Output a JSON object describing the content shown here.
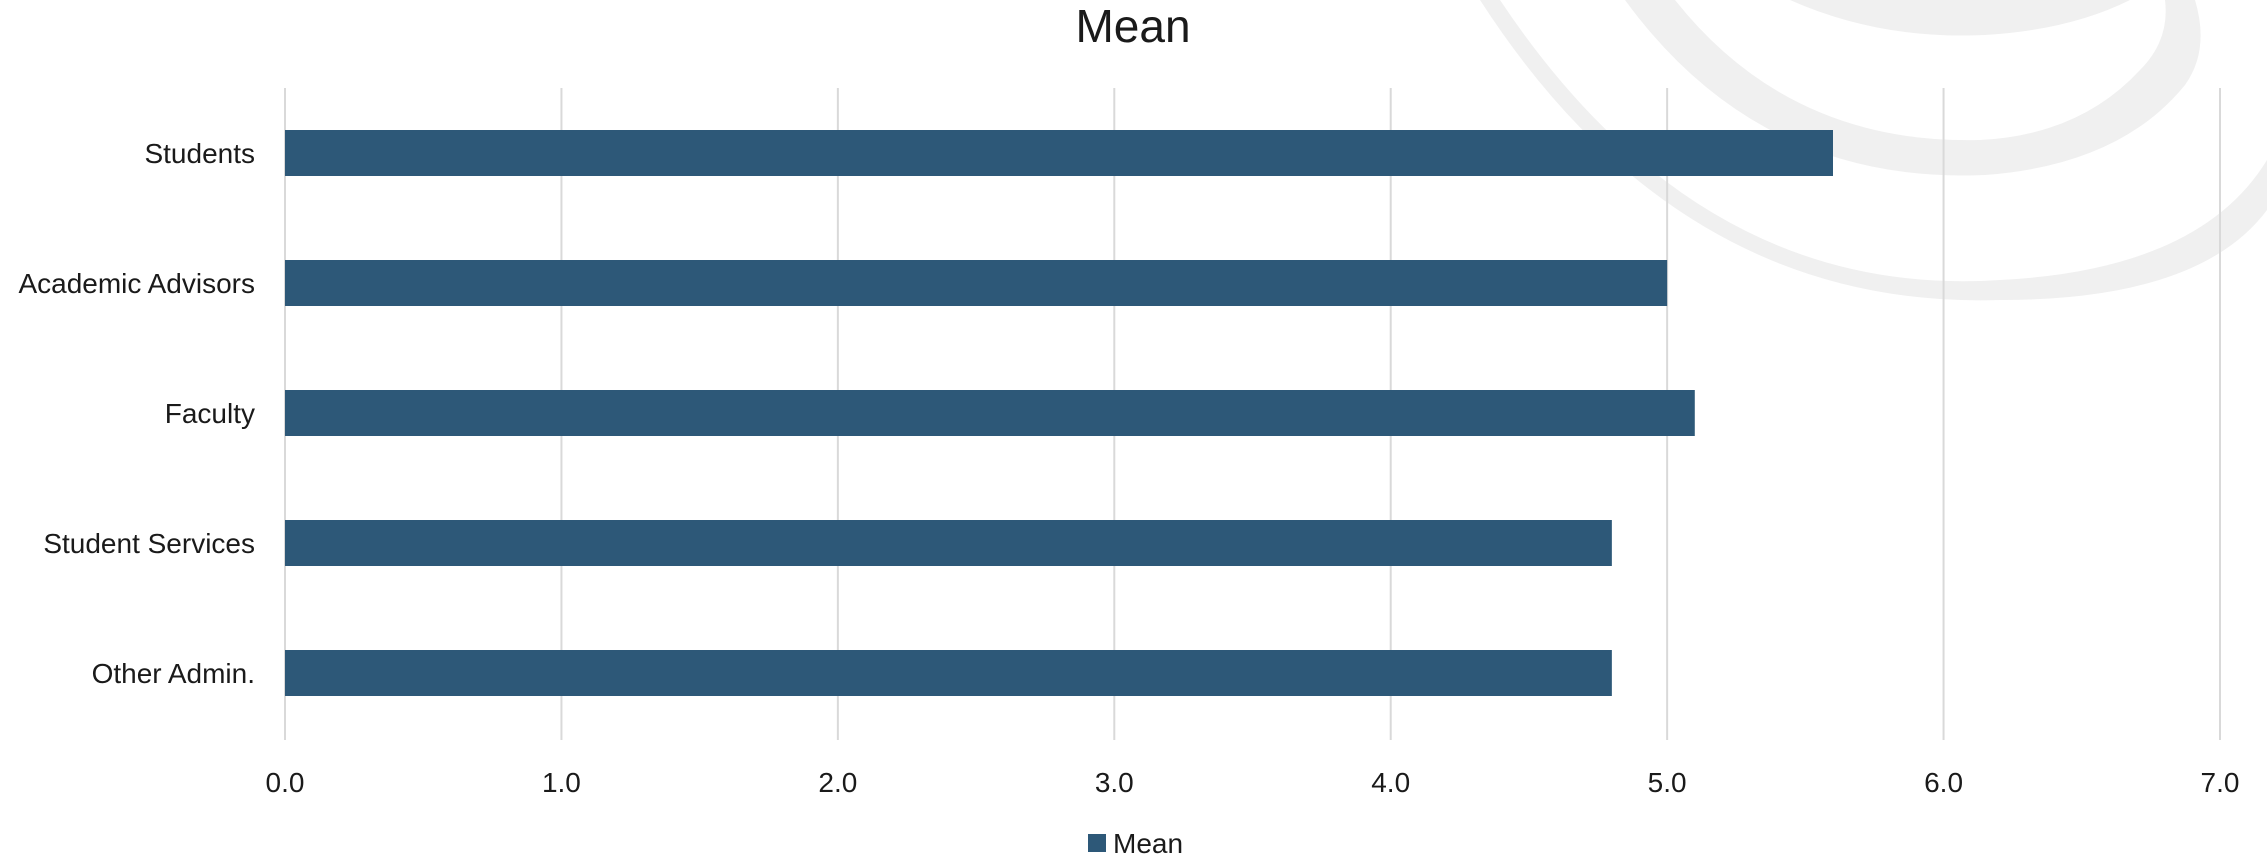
{
  "chart_data": {
    "type": "bar",
    "orientation": "horizontal",
    "title": "Mean",
    "xlabel": "",
    "ylabel": "",
    "categories": [
      "Students",
      "Academic Advisors",
      "Faculty",
      "Student Services",
      "Other Admin."
    ],
    "series": [
      {
        "name": "Mean",
        "values": [
          5.6,
          5.0,
          5.1,
          4.8,
          4.8
        ]
      }
    ],
    "xlim": [
      0,
      7
    ],
    "x_ticks": [
      "0.0",
      "1.0",
      "2.0",
      "3.0",
      "4.0",
      "5.0",
      "6.0",
      "7.0"
    ],
    "grid": true,
    "legend_position": "bottom"
  },
  "colors": {
    "bar": "#2d5878",
    "grid": "#d9d9d9",
    "watermark": "#f0f0f0"
  }
}
